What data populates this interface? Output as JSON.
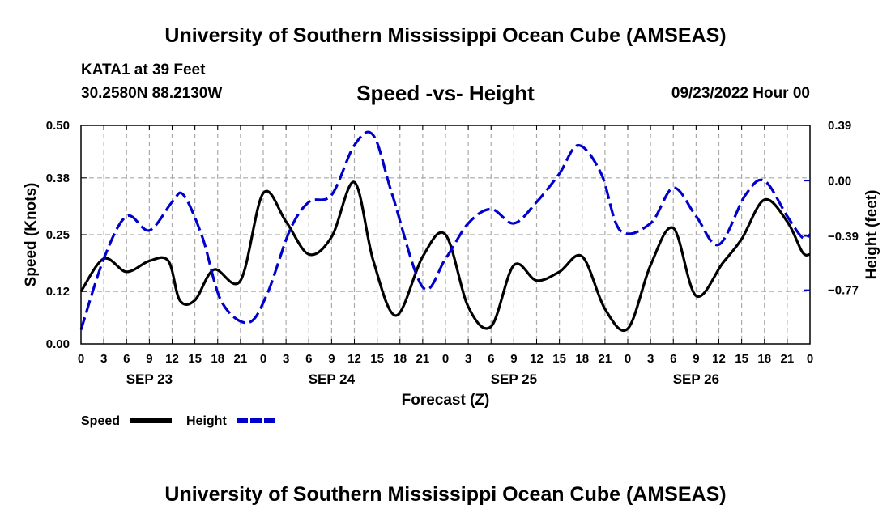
{
  "header": {
    "title": "University of Southern Mississippi Ocean Cube (AMSEAS)",
    "station": "KATA1 at 39 Feet",
    "coords": "30.2580N  88.2130W",
    "subtitle": "Speed -vs- Height",
    "datetime": "09/23/2022 Hour 00"
  },
  "footer": {
    "title": "University of Southern Mississippi Ocean Cube (AMSEAS)"
  },
  "colors": {
    "speed": "#000000",
    "height": "#0000cc",
    "grid": "#aaaaaa"
  },
  "chart_data": {
    "type": "line",
    "title": "Speed -vs- Height",
    "xlabel": "Forecast (Z)",
    "ylabel": "Speed (Knots)",
    "y2label": "Height (feet)",
    "xlim": [
      0,
      96
    ],
    "ylim": [
      0.0,
      0.5
    ],
    "y2lim": [
      -1.15,
      0.39
    ],
    "grid": true,
    "x_ticks": [
      0,
      3,
      6,
      9,
      12,
      15,
      18,
      21,
      24,
      27,
      30,
      33,
      36,
      39,
      42,
      45,
      48,
      51,
      54,
      57,
      60,
      63,
      66,
      69,
      72,
      75,
      78,
      81,
      84,
      87,
      90,
      93,
      96
    ],
    "x_tick_labels": [
      "0",
      "3",
      "6",
      "9",
      "12",
      "15",
      "18",
      "21",
      "0",
      "3",
      "6",
      "9",
      "12",
      "15",
      "18",
      "21",
      "0",
      "3",
      "6",
      "9",
      "12",
      "15",
      "18",
      "21",
      "0",
      "3",
      "6",
      "9",
      "12",
      "15",
      "18",
      "21",
      "0"
    ],
    "day_labels": [
      {
        "label": "SEP 23",
        "x": 9
      },
      {
        "label": "SEP 24",
        "x": 33
      },
      {
        "label": "SEP 25",
        "x": 57
      },
      {
        "label": "SEP 26",
        "x": 81
      }
    ],
    "y_ticks": [
      0.0,
      0.12,
      0.25,
      0.38,
      0.5
    ],
    "y_tick_labels": [
      "0.00",
      "0.12",
      "0.25",
      "0.38",
      "0.50"
    ],
    "y2_ticks": [
      0.39,
      0.0,
      -0.39,
      -0.77
    ],
    "y2_tick_labels": [
      "0.39",
      "0.00",
      "−0.39",
      "−0.77"
    ],
    "legend": {
      "position": "bottom-left",
      "entries": [
        {
          "label": "Speed",
          "series": "Speed"
        },
        {
          "label": "Height",
          "series": "Height"
        }
      ]
    },
    "series": [
      {
        "name": "Speed",
        "axis": "left",
        "style": "solid",
        "x": [
          0,
          3,
          6,
          9,
          11.5,
          13,
          15,
          17.5,
          21,
          24,
          27,
          30,
          33,
          36,
          38.5,
          41.5,
          45,
          48,
          51,
          54,
          57,
          60,
          63,
          66,
          69,
          72,
          75,
          78,
          81,
          84.5,
          87,
          90,
          93,
          95,
          96
        ],
        "y": [
          0.12,
          0.195,
          0.165,
          0.19,
          0.19,
          0.1,
          0.1,
          0.17,
          0.145,
          0.345,
          0.28,
          0.205,
          0.245,
          0.37,
          0.19,
          0.065,
          0.2,
          0.25,
          0.085,
          0.04,
          0.18,
          0.145,
          0.165,
          0.2,
          0.08,
          0.035,
          0.18,
          0.265,
          0.11,
          0.185,
          0.24,
          0.33,
          0.28,
          0.21,
          0.205
        ]
      },
      {
        "name": "Height",
        "axis": "right",
        "style": "dashed",
        "x": [
          0,
          3,
          6,
          9,
          12,
          13.5,
          16,
          18.5,
          22,
          24.5,
          27.5,
          30,
          33,
          36,
          38.5,
          41,
          45,
          48,
          51,
          54,
          57,
          60,
          63,
          65.5,
          68.5,
          71,
          75,
          78,
          81,
          84,
          87.5,
          90,
          93,
          95,
          96
        ],
        "y": [
          -1.05,
          -0.55,
          -0.25,
          -0.35,
          -0.15,
          -0.1,
          -0.4,
          -0.85,
          -1.0,
          -0.8,
          -0.35,
          -0.15,
          -0.1,
          0.25,
          0.32,
          -0.1,
          -0.75,
          -0.55,
          -0.3,
          -0.2,
          -0.3,
          -0.15,
          0.05,
          0.25,
          0.05,
          -0.35,
          -0.3,
          -0.05,
          -0.25,
          -0.45,
          -0.1,
          0.0,
          -0.25,
          -0.4,
          -0.38
        ]
      }
    ]
  }
}
